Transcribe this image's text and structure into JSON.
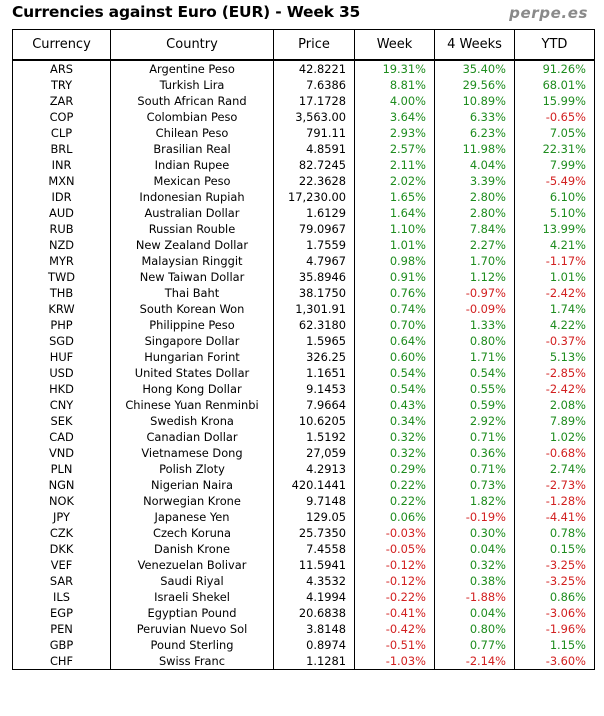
{
  "title": "Currencies against Euro (EUR) - Week 35",
  "brand": "perpe.es",
  "colors": {
    "positive": "#1e8c1e",
    "negative": "#d22020",
    "brand": "#8a8a8a"
  },
  "columns": [
    "Currency",
    "Country",
    "Price",
    "Week",
    "4 Weeks",
    "YTD"
  ],
  "rows": [
    [
      "ARS",
      "Argentine Peso",
      "42.8221",
      "19.31%",
      "35.40%",
      "91.26%"
    ],
    [
      "TRY",
      "Turkish Lira",
      "7.6386",
      "8.81%",
      "29.56%",
      "68.01%"
    ],
    [
      "ZAR",
      "South African Rand",
      "17.1728",
      "4.00%",
      "10.89%",
      "15.99%"
    ],
    [
      "COP",
      "Colombian Peso",
      "3,563.00",
      "3.64%",
      "6.33%",
      "-0.65%"
    ],
    [
      "CLP",
      "Chilean Peso",
      "791.11",
      "2.93%",
      "6.23%",
      "7.05%"
    ],
    [
      "BRL",
      "Brasilian Real",
      "4.8591",
      "2.57%",
      "11.98%",
      "22.31%"
    ],
    [
      "INR",
      "Indian Rupee",
      "82.7245",
      "2.11%",
      "4.04%",
      "7.99%"
    ],
    [
      "MXN",
      "Mexican Peso",
      "22.3628",
      "2.02%",
      "3.39%",
      "-5.49%"
    ],
    [
      "IDR",
      "Indonesian Rupiah",
      "17,230.00",
      "1.65%",
      "2.80%",
      "6.10%"
    ],
    [
      "AUD",
      "Australian Dollar",
      "1.6129",
      "1.64%",
      "2.80%",
      "5.10%"
    ],
    [
      "RUB",
      "Russian Rouble",
      "79.0967",
      "1.10%",
      "7.84%",
      "13.99%"
    ],
    [
      "NZD",
      "New Zealand Dollar",
      "1.7559",
      "1.01%",
      "2.27%",
      "4.21%"
    ],
    [
      "MYR",
      "Malaysian Ringgit",
      "4.7967",
      "0.98%",
      "1.70%",
      "-1.17%"
    ],
    [
      "TWD",
      "New Taiwan Dollar",
      "35.8946",
      "0.91%",
      "1.12%",
      "1.01%"
    ],
    [
      "THB",
      "Thai Baht",
      "38.1750",
      "0.76%",
      "-0.97%",
      "-2.42%"
    ],
    [
      "KRW",
      "South Korean Won",
      "1,301.91",
      "0.74%",
      "-0.09%",
      "1.74%"
    ],
    [
      "PHP",
      "Philippine Peso",
      "62.3180",
      "0.70%",
      "1.33%",
      "4.22%"
    ],
    [
      "SGD",
      "Singapore Dollar",
      "1.5965",
      "0.64%",
      "0.80%",
      "-0.37%"
    ],
    [
      "HUF",
      "Hungarian Forint",
      "326.25",
      "0.60%",
      "1.71%",
      "5.13%"
    ],
    [
      "USD",
      "United States Dollar",
      "1.1651",
      "0.54%",
      "0.54%",
      "-2.85%"
    ],
    [
      "HKD",
      "Hong Kong Dollar",
      "9.1453",
      "0.54%",
      "0.55%",
      "-2.42%"
    ],
    [
      "CNY",
      "Chinese Yuan Renminbi",
      "7.9664",
      "0.43%",
      "0.59%",
      "2.08%"
    ],
    [
      "SEK",
      "Swedish Krona",
      "10.6205",
      "0.34%",
      "2.92%",
      "7.89%"
    ],
    [
      "CAD",
      "Canadian Dollar",
      "1.5192",
      "0.32%",
      "0.71%",
      "1.02%"
    ],
    [
      "VND",
      "Vietnamese Dong",
      "27,059",
      "0.32%",
      "0.36%",
      "-0.68%"
    ],
    [
      "PLN",
      "Polish Zloty",
      "4.2913",
      "0.29%",
      "0.71%",
      "2.74%"
    ],
    [
      "NGN",
      "Nigerian Naira",
      "420.1441",
      "0.22%",
      "0.73%",
      "-2.73%"
    ],
    [
      "NOK",
      "Norwegian Krone",
      "9.7148",
      "0.22%",
      "1.82%",
      "-1.28%"
    ],
    [
      "JPY",
      "Japanese Yen",
      "129.05",
      "0.06%",
      "-0.19%",
      "-4.41%"
    ],
    [
      "CZK",
      "Czech Koruna",
      "25.7350",
      "-0.03%",
      "0.30%",
      "0.78%"
    ],
    [
      "DKK",
      "Danish Krone",
      "7.4558",
      "-0.05%",
      "0.04%",
      "0.15%"
    ],
    [
      "VEF",
      "Venezuelan Bolivar",
      "11.5941",
      "-0.12%",
      "0.32%",
      "-3.25%"
    ],
    [
      "SAR",
      "Saudi Riyal",
      "4.3532",
      "-0.12%",
      "0.38%",
      "-3.25%"
    ],
    [
      "ILS",
      "Israeli Shekel",
      "4.1994",
      "-0.22%",
      "-1.88%",
      "0.86%"
    ],
    [
      "EGP",
      "Egyptian Pound",
      "20.6838",
      "-0.41%",
      "0.04%",
      "-3.06%"
    ],
    [
      "PEN",
      "Peruvian Nuevo Sol",
      "3.8148",
      "-0.42%",
      "0.80%",
      "-1.96%"
    ],
    [
      "GBP",
      "Pound Sterling",
      "0.8974",
      "-0.51%",
      "0.77%",
      "1.15%"
    ],
    [
      "CHF",
      "Swiss Franc",
      "1.1281",
      "-1.03%",
      "-2.14%",
      "-3.60%"
    ]
  ]
}
